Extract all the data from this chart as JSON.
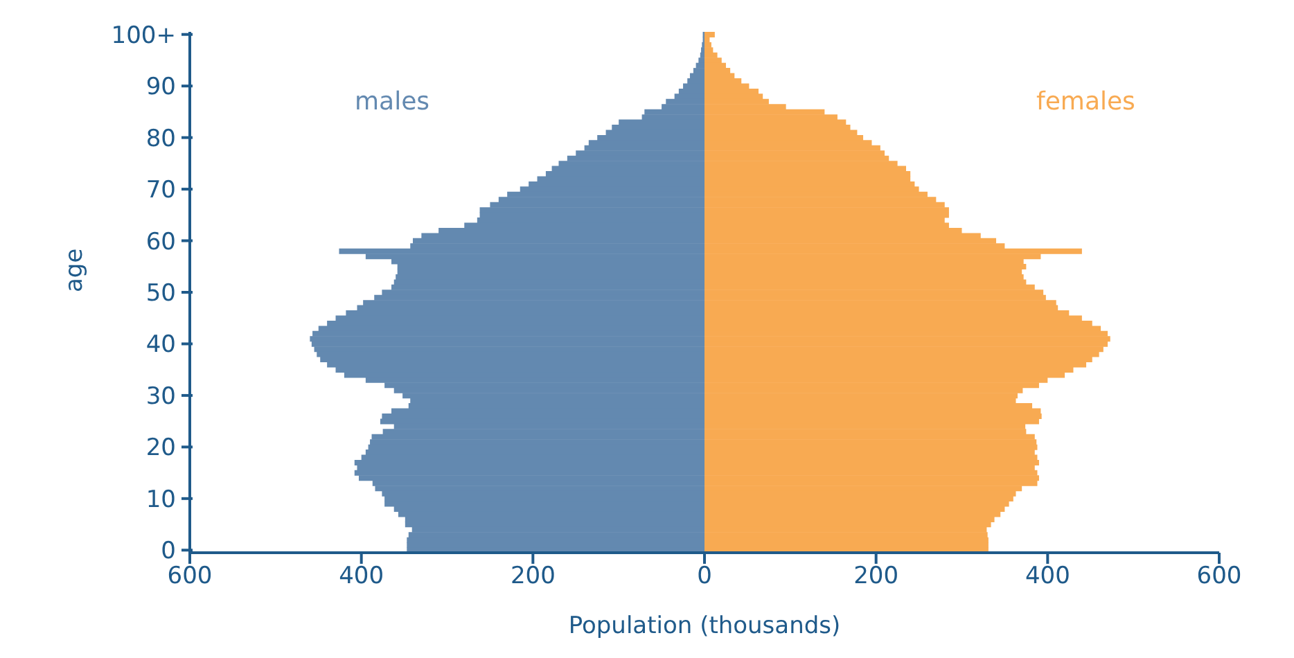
{
  "chart_data": {
    "type": "bar",
    "orientation": "horizontal",
    "stacked": true,
    "xlabel": "Population (thousands)",
    "ylabel": "age",
    "categories": [
      "100+",
      null,
      null,
      null,
      null,
      null,
      null,
      null,
      null,
      null,
      "90",
      null,
      null,
      null,
      null,
      null,
      null,
      null,
      null,
      null,
      "80",
      null,
      null,
      null,
      null,
      null,
      null,
      null,
      null,
      null,
      "70",
      null,
      null,
      null,
      null,
      null,
      null,
      null,
      null,
      null,
      "60",
      null,
      null,
      null,
      null,
      null,
      null,
      null,
      null,
      null,
      "50",
      null,
      null,
      null,
      null,
      null,
      null,
      null,
      null,
      null,
      "40",
      null,
      null,
      null,
      null,
      null,
      null,
      null,
      null,
      null,
      "30",
      null,
      null,
      null,
      null,
      null,
      null,
      null,
      null,
      null,
      "20",
      null,
      null,
      null,
      null,
      null,
      null,
      null,
      null,
      null,
      "10",
      null,
      null,
      null,
      null,
      null,
      null,
      null,
      null,
      null,
      "0"
    ],
    "series": [
      {
        "name": "males",
        "color": "#6389b0",
        "values": [
          -2,
          -2,
          -3,
          -4,
          -5,
          -7,
          -10,
          -13,
          -17,
          -20,
          -25,
          -30,
          -35,
          -45,
          -50,
          -70,
          -73,
          -100,
          -108,
          -115,
          -125,
          -135,
          -140,
          -150,
          -160,
          -170,
          -178,
          -185,
          -195,
          -205,
          -215,
          -230,
          -240,
          -250,
          -262,
          -262,
          -265,
          -280,
          -310,
          -330,
          -340,
          -343,
          -426,
          -395,
          -365,
          -358,
          -358,
          -360,
          -362,
          -365,
          -376,
          -385,
          -398,
          -405,
          -418,
          -430,
          -440,
          -450,
          -457,
          -460,
          -458,
          -455,
          -452,
          -448,
          -440,
          -430,
          -420,
          -395,
          -373,
          -362,
          -352,
          -343,
          -345,
          -365,
          -376,
          -378,
          -362,
          -375,
          -388,
          -390,
          -392,
          -395,
          -400,
          -408,
          -405,
          -408,
          -403,
          -387,
          -384,
          -376,
          -373,
          -373,
          -362,
          -357,
          -349,
          -349,
          -341,
          -345,
          -347,
          -347,
          -347
        ]
      },
      {
        "name": "females",
        "color": "#f8aa52",
        "values": [
          12,
          6,
          8,
          10,
          15,
          20,
          25,
          30,
          35,
          43,
          52,
          63,
          68,
          75,
          95,
          140,
          155,
          165,
          170,
          178,
          185,
          195,
          205,
          210,
          215,
          225,
          235,
          240,
          240,
          245,
          250,
          260,
          270,
          280,
          285,
          285,
          280,
          285,
          300,
          322,
          340,
          350,
          440,
          392,
          372,
          375,
          370,
          372,
          375,
          385,
          395,
          398,
          410,
          412,
          425,
          440,
          452,
          462,
          470,
          473,
          470,
          465,
          460,
          452,
          445,
          430,
          420,
          400,
          390,
          371,
          365,
          363,
          382,
          392,
          393,
          390,
          374,
          375,
          385,
          387,
          388,
          385,
          388,
          390,
          385,
          388,
          390,
          388,
          370,
          363,
          360,
          355,
          350,
          345,
          338,
          334,
          329,
          330,
          331,
          331,
          331
        ]
      }
    ],
    "xlim": [
      -600,
      600
    ],
    "xticks": [
      {
        "value": -600,
        "label": "600"
      },
      {
        "value": -400,
        "label": "400"
      },
      {
        "value": -200,
        "label": "200"
      },
      0,
      200,
      400,
      600
    ]
  }
}
